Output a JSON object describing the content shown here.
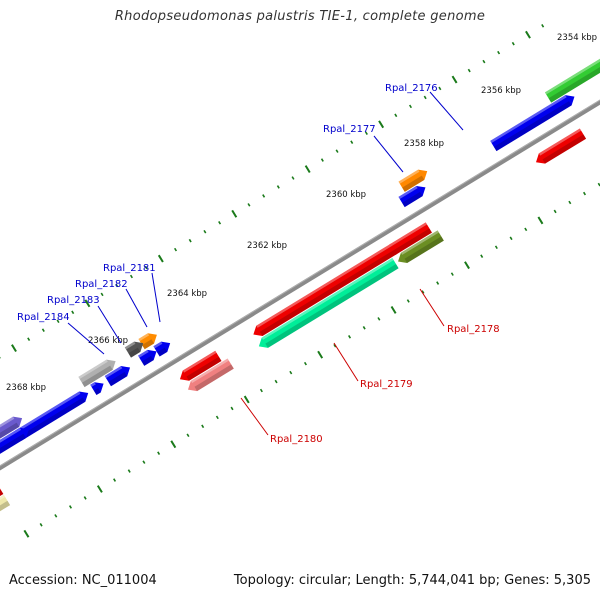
{
  "title": "Rhodopseudomonas palustris TIE-1, complete genome",
  "footer": {
    "accession": "Accession: NC_011004",
    "summary": "Topology: circular; Length: 5,744,041 bp; Genes: 5,305"
  },
  "scale_labels": [
    {
      "text": "2354 kbp",
      "kbp": 2354
    },
    {
      "text": "2356 kbp",
      "kbp": 2356
    },
    {
      "text": "2358 kbp",
      "kbp": 2358
    },
    {
      "text": "2360 kbp",
      "kbp": 2360
    },
    {
      "text": "2362 kbp",
      "kbp": 2362
    },
    {
      "text": "2364 kbp",
      "kbp": 2364
    },
    {
      "text": "2366 kbp",
      "kbp": 2366
    },
    {
      "text": "2368 kbp",
      "kbp": 2368
    }
  ],
  "gene_labels_forward": [
    "Rpal_2176",
    "Rpal_2177",
    "Rpal_2181",
    "Rpal_2182",
    "Rpal_2183",
    "Rpal_2184"
  ],
  "gene_labels_reverse": [
    "Rpal_2178",
    "Rpal_2179",
    "Rpal_2180"
  ],
  "colors": {
    "backbone": "#808080",
    "tick": "#1a7a1a",
    "forward_label": "#0000cc",
    "reverse_label": "#cc0000",
    "cds_forward": "#0000ee",
    "cds_reverse": "#ee0000",
    "rpal_2176": "#33cc33",
    "rpal_2177": "#ff8800",
    "rpal_2178": "#6b8e23",
    "rpal_2179": "#00ee99",
    "rpal_2180": "#f08080",
    "rpal_2181": "#ff8c00",
    "rpal_2182": "#555555",
    "rpal_2183": "#b0b0b0",
    "rpal_2184": "#6a5acd",
    "edge_yellow": "#eee8aa"
  }
}
